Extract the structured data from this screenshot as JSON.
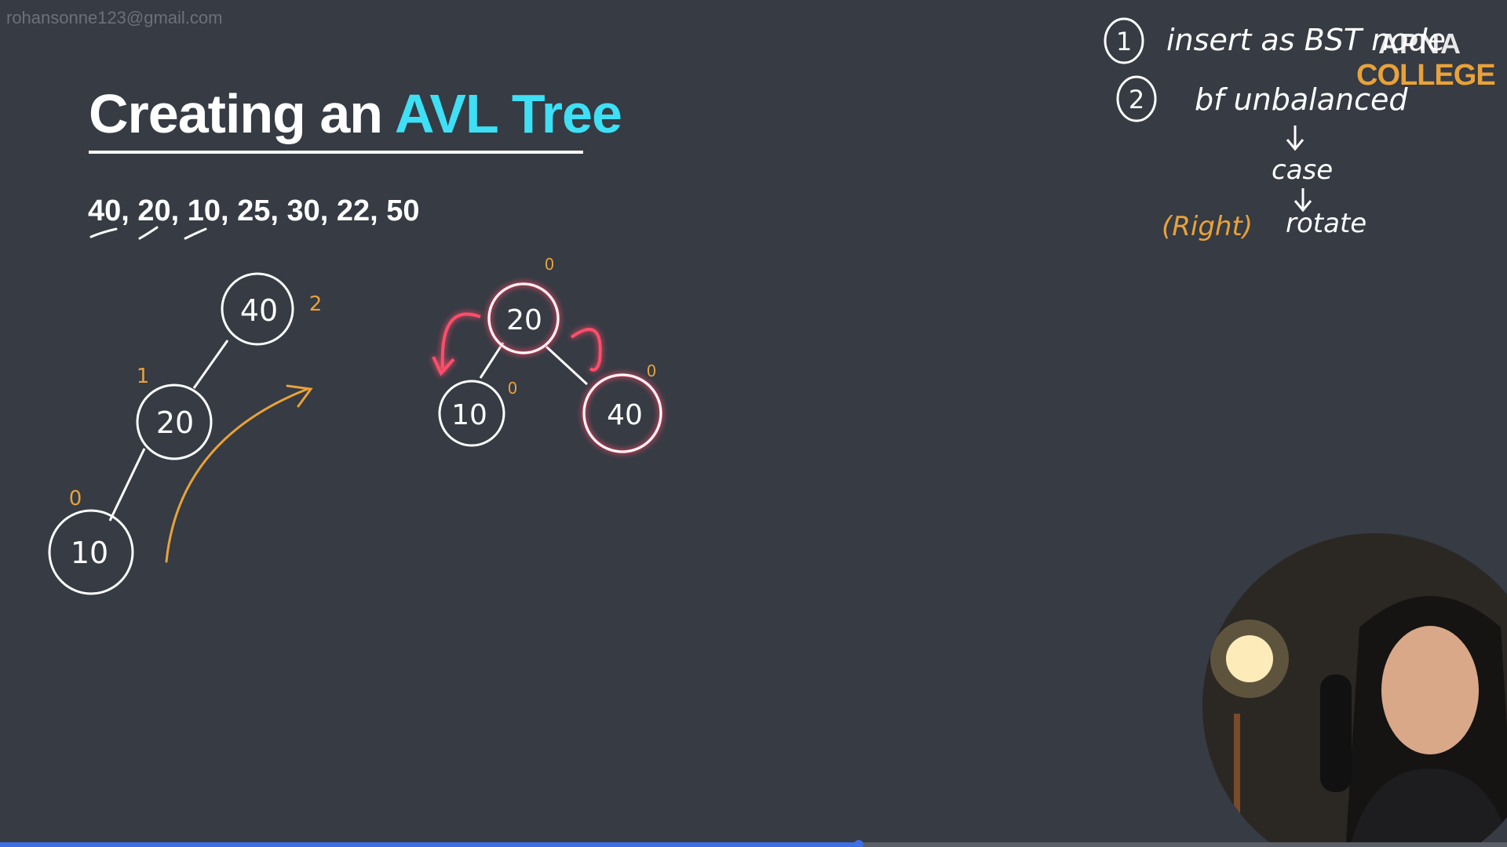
{
  "watermark": "rohansonne123@gmail.com",
  "slide": {
    "title_plain": "Creating an ",
    "title_accent": "AVL Tree",
    "sequence": "40, 20, 10, 25, 30, 22, 50"
  },
  "brand": {
    "line1": "APNA",
    "line2": "COLLEGE"
  },
  "notes": {
    "step1_num": "1",
    "step1_text": "insert as BST node",
    "step2_num": "2",
    "step2_text": "bf unbalanced",
    "case_text": "case",
    "rotate_text": "rotate",
    "right_text": "(Right)"
  },
  "tree_before": {
    "nodes": [
      "40",
      "20",
      "10"
    ],
    "balance": [
      "2",
      "1",
      "0"
    ]
  },
  "tree_after": {
    "nodes": [
      "20",
      "10",
      "40"
    ],
    "balance": [
      "0",
      "0",
      "0"
    ]
  },
  "colors": {
    "background": "#363b44",
    "accent": "#3ee0f5",
    "annotation_orange": "#e8a23a",
    "highlight_red": "#ff4d6a",
    "ink": "#ffffff",
    "progress": "#3d6ee6"
  },
  "playback": {
    "progress_fraction": 0.57
  },
  "webcam": {
    "label": "presenter-webcam"
  }
}
